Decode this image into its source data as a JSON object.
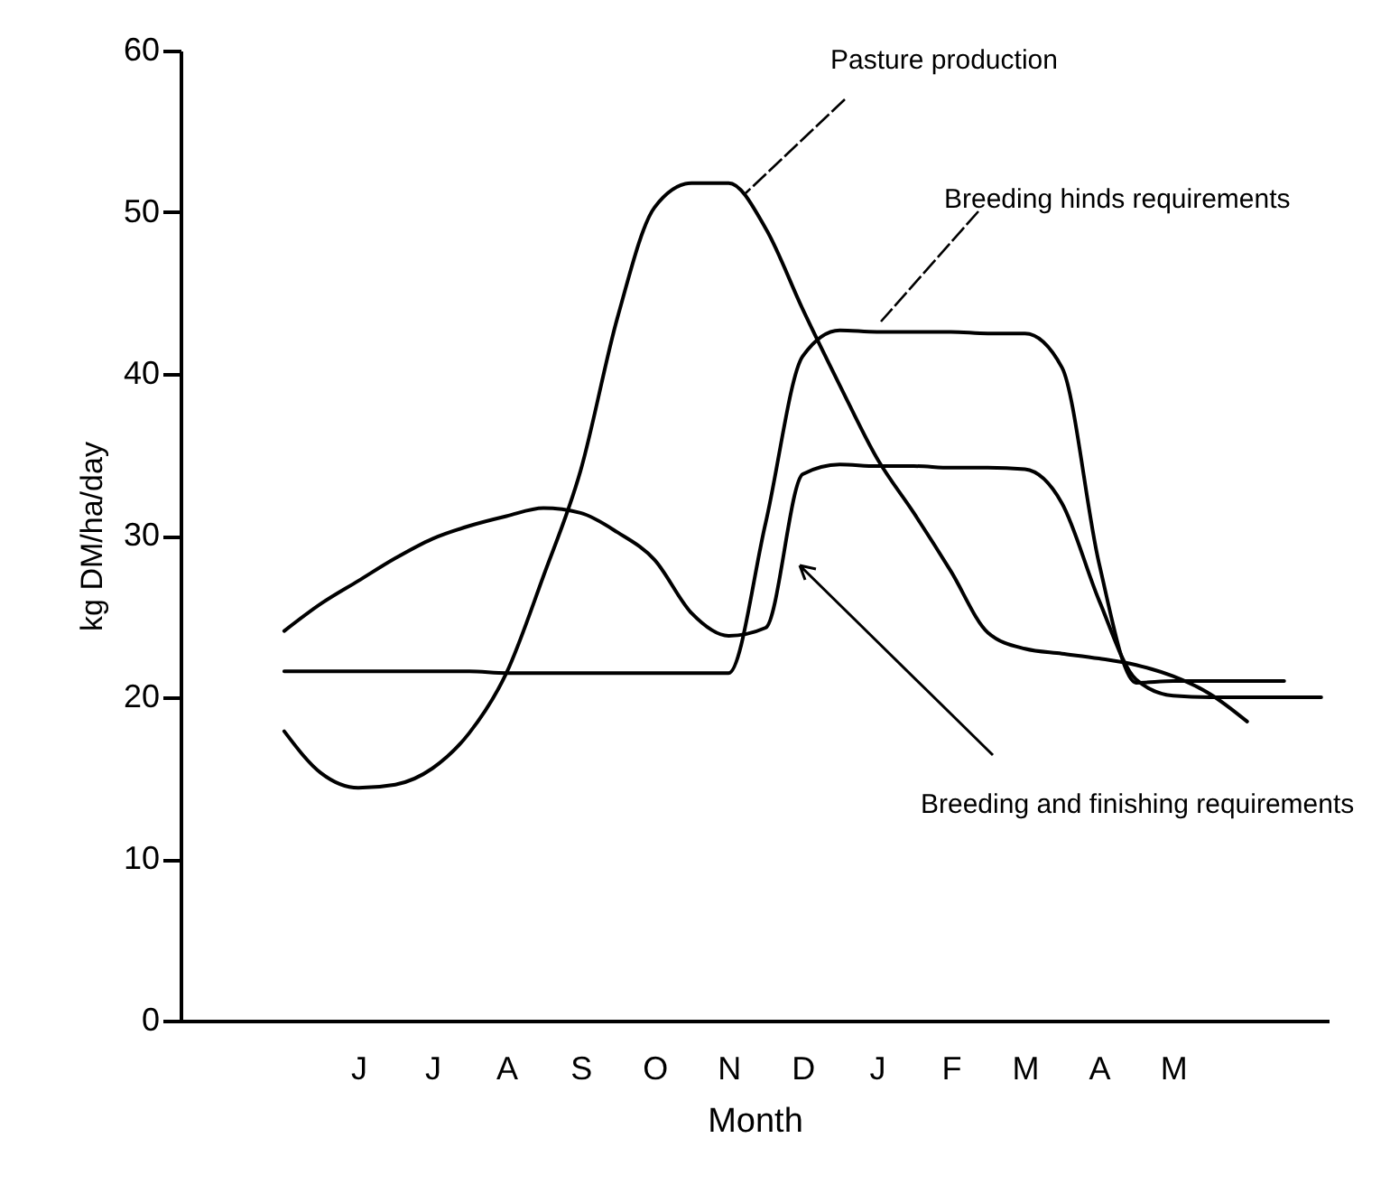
{
  "chart_data": {
    "type": "line",
    "xlabel": "Month",
    "ylabel": "kg DM/ha/day",
    "ylim": [
      0,
      60
    ],
    "yticks": [
      0,
      10,
      20,
      30,
      40,
      50,
      60
    ],
    "categories": [
      null,
      null,
      "J",
      null,
      "J",
      null,
      "A",
      null,
      "S",
      null,
      "O",
      null,
      "N",
      null,
      "D",
      null,
      "J",
      null,
      "F",
      null,
      "M",
      null,
      "A",
      null,
      "M",
      null,
      null,
      null,
      null
    ],
    "grid": false,
    "legend": false,
    "marker": "none",
    "line_style": "solid",
    "series": [
      {
        "name": "Pasture production",
        "color": "#000000",
        "values": [
          17.9,
          15.3,
          14.4,
          14.6,
          15.6,
          17.8,
          21.5,
          27.5,
          34,
          43.5,
          50.3,
          51.8,
          51.8,
          49,
          44,
          39.3,
          34.8,
          31.4,
          27.8,
          24,
          23,
          22.7,
          22.4,
          22,
          21.3,
          20.2,
          18.5,
          null,
          null
        ]
      },
      {
        "name": "Breeding hinds requirements",
        "color": "#000000",
        "values": [
          21.6,
          21.6,
          21.6,
          21.6,
          21.6,
          21.6,
          21.5,
          21.5,
          21.5,
          21.5,
          21.5,
          21.5,
          21.5,
          30.8,
          41.1,
          42.7,
          42.6,
          42.6,
          42.6,
          42.5,
          42.5,
          40.4,
          28.3,
          20.9,
          21,
          21,
          21,
          21,
          null
        ]
      },
      {
        "name": "Breeding and finishing requirements",
        "color": "#000000",
        "values": [
          24.1,
          25.8,
          27.2,
          28.6,
          29.8,
          30.6,
          31.2,
          31.7,
          31.4,
          30.2,
          28.5,
          25.2,
          23.8,
          24.3,
          33.8,
          34.4,
          34.3,
          34.3,
          34.2,
          34.2,
          34.1,
          32,
          26,
          21.1,
          20.1,
          20,
          20,
          20,
          20
        ]
      }
    ]
  }
}
